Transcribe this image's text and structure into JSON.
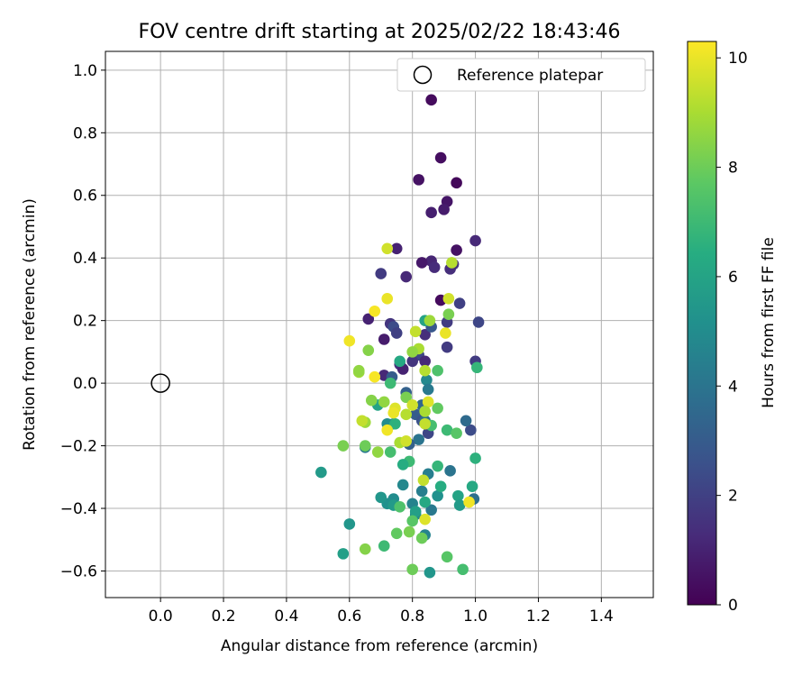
{
  "chart_data": {
    "type": "scatter",
    "title": "FOV centre drift starting at 2025/02/22 18:43:46",
    "xlabel": "Angular distance from reference (arcmin)",
    "ylabel": "Rotation from reference (arcmin)",
    "xlim": [
      -0.175,
      1.565
    ],
    "ylim": [
      -0.685,
      1.06
    ],
    "xticks": [
      "0.0",
      "0.2",
      "0.4",
      "0.6",
      "0.8",
      "1.0",
      "1.2",
      "1.4"
    ],
    "yticks": [
      "−0.6",
      "−0.4",
      "−0.2",
      "0.0",
      "0.2",
      "0.4",
      "0.6",
      "0.8",
      "1.0"
    ],
    "grid": true,
    "legend": {
      "placement": "top-right",
      "entries": [
        "Reference platepar"
      ]
    },
    "colorbar": {
      "label": "Hours from first FF file",
      "range": [
        0,
        10.3
      ],
      "ticks": [
        "0",
        "2",
        "4",
        "6",
        "8",
        "10"
      ],
      "colormap": "viridis"
    },
    "reference_point": {
      "name": "Reference platepar",
      "x": 0.0,
      "y": 0.0
    },
    "points": [
      {
        "x": 0.86,
        "y": 0.905,
        "h": 0.3
      },
      {
        "x": 0.89,
        "y": 0.72,
        "h": 0.4
      },
      {
        "x": 0.82,
        "y": 0.65,
        "h": 0.5
      },
      {
        "x": 0.94,
        "y": 0.64,
        "h": 0.2
      },
      {
        "x": 0.91,
        "y": 0.58,
        "h": 0.6
      },
      {
        "x": 0.9,
        "y": 0.555,
        "h": 0.8
      },
      {
        "x": 0.86,
        "y": 0.545,
        "h": 0.9
      },
      {
        "x": 1.0,
        "y": 0.455,
        "h": 1.2
      },
      {
        "x": 0.75,
        "y": 0.43,
        "h": 1.0
      },
      {
        "x": 0.94,
        "y": 0.425,
        "h": 0.5
      },
      {
        "x": 0.86,
        "y": 0.39,
        "h": 1.1
      },
      {
        "x": 0.83,
        "y": 0.385,
        "h": 0.7
      },
      {
        "x": 0.93,
        "y": 0.38,
        "h": 1.6
      },
      {
        "x": 0.87,
        "y": 0.37,
        "h": 1.3
      },
      {
        "x": 0.92,
        "y": 0.365,
        "h": 1.4
      },
      {
        "x": 0.7,
        "y": 0.35,
        "h": 1.8
      },
      {
        "x": 0.78,
        "y": 0.34,
        "h": 1.2
      },
      {
        "x": 0.89,
        "y": 0.265,
        "h": 0.3
      },
      {
        "x": 0.95,
        "y": 0.255,
        "h": 2.0
      },
      {
        "x": 0.66,
        "y": 0.205,
        "h": 1.0
      },
      {
        "x": 1.01,
        "y": 0.195,
        "h": 2.2
      },
      {
        "x": 0.91,
        "y": 0.195,
        "h": 1.8
      },
      {
        "x": 0.73,
        "y": 0.19,
        "h": 1.6
      },
      {
        "x": 0.74,
        "y": 0.18,
        "h": 2.4
      },
      {
        "x": 0.75,
        "y": 0.16,
        "h": 2.0
      },
      {
        "x": 0.84,
        "y": 0.155,
        "h": 1.4
      },
      {
        "x": 0.71,
        "y": 0.14,
        "h": 0.8
      },
      {
        "x": 0.86,
        "y": 0.18,
        "h": 2.8
      },
      {
        "x": 0.91,
        "y": 0.115,
        "h": 1.8
      },
      {
        "x": 0.82,
        "y": 0.09,
        "h": 2.2
      },
      {
        "x": 0.8,
        "y": 0.07,
        "h": 1.6
      },
      {
        "x": 0.84,
        "y": 0.07,
        "h": 1.2
      },
      {
        "x": 0.76,
        "y": 0.06,
        "h": 1.4
      },
      {
        "x": 0.77,
        "y": 0.045,
        "h": 1.0
      },
      {
        "x": 1.0,
        "y": 0.07,
        "h": 1.8
      },
      {
        "x": 0.71,
        "y": 0.025,
        "h": 1.2
      },
      {
        "x": 0.735,
        "y": 0.02,
        "h": 3.0
      },
      {
        "x": 0.845,
        "y": 0.01,
        "h": 4.8
      },
      {
        "x": 0.78,
        "y": -0.03,
        "h": 3.2
      },
      {
        "x": 0.85,
        "y": -0.02,
        "h": 4.2
      },
      {
        "x": 0.83,
        "y": -0.07,
        "h": 3.4
      },
      {
        "x": 0.81,
        "y": -0.1,
        "h": 3.0
      },
      {
        "x": 0.985,
        "y": -0.15,
        "h": 2.4
      },
      {
        "x": 0.97,
        "y": -0.12,
        "h": 3.6
      },
      {
        "x": 0.83,
        "y": -0.12,
        "h": 2.6
      },
      {
        "x": 0.85,
        "y": -0.16,
        "h": 2.2
      },
      {
        "x": 0.82,
        "y": -0.18,
        "h": 4.0
      },
      {
        "x": 0.79,
        "y": -0.195,
        "h": 3.2
      },
      {
        "x": 0.84,
        "y": -0.12,
        "h": 3.8
      },
      {
        "x": 0.74,
        "y": -0.13,
        "h": 4.6
      },
      {
        "x": 0.72,
        "y": -0.13,
        "h": 5.0
      },
      {
        "x": 0.65,
        "y": -0.205,
        "h": 4.2
      },
      {
        "x": 0.85,
        "y": -0.29,
        "h": 4.4
      },
      {
        "x": 0.92,
        "y": -0.28,
        "h": 4.0
      },
      {
        "x": 0.83,
        "y": -0.345,
        "h": 4.4
      },
      {
        "x": 0.77,
        "y": -0.325,
        "h": 4.8
      },
      {
        "x": 0.88,
        "y": -0.36,
        "h": 5.2
      },
      {
        "x": 0.995,
        "y": -0.37,
        "h": 3.8
      },
      {
        "x": 0.8,
        "y": -0.385,
        "h": 4.6
      },
      {
        "x": 0.86,
        "y": -0.405,
        "h": 4.2
      },
      {
        "x": 0.74,
        "y": -0.37,
        "h": 5.0
      },
      {
        "x": 0.72,
        "y": -0.385,
        "h": 5.2
      },
      {
        "x": 0.81,
        "y": -0.42,
        "h": 4.8
      },
      {
        "x": 0.84,
        "y": -0.485,
        "h": 4.6
      },
      {
        "x": 0.6,
        "y": -0.45,
        "h": 5.4
      },
      {
        "x": 0.51,
        "y": -0.285,
        "h": 5.6
      },
      {
        "x": 0.58,
        "y": -0.545,
        "h": 5.8
      },
      {
        "x": 0.855,
        "y": -0.605,
        "h": 5.4
      },
      {
        "x": 0.7,
        "y": -0.365,
        "h": 5.4
      },
      {
        "x": 0.74,
        "y": -0.39,
        "h": 5.6
      },
      {
        "x": 0.84,
        "y": -0.38,
        "h": 6.2
      },
      {
        "x": 0.81,
        "y": -0.41,
        "h": 5.8
      },
      {
        "x": 0.945,
        "y": -0.36,
        "h": 6.0
      },
      {
        "x": 0.95,
        "y": -0.39,
        "h": 5.6
      },
      {
        "x": 0.99,
        "y": -0.33,
        "h": 6.2
      },
      {
        "x": 1.0,
        "y": -0.24,
        "h": 6.6
      },
      {
        "x": 0.89,
        "y": -0.33,
        "h": 6.4
      },
      {
        "x": 0.88,
        "y": -0.265,
        "h": 6.8
      },
      {
        "x": 0.79,
        "y": -0.25,
        "h": 7.0
      },
      {
        "x": 0.77,
        "y": -0.26,
        "h": 6.4
      },
      {
        "x": 0.73,
        "y": -0.22,
        "h": 7.2
      },
      {
        "x": 0.745,
        "y": -0.13,
        "h": 6.6
      },
      {
        "x": 0.69,
        "y": -0.07,
        "h": 6.0
      },
      {
        "x": 0.73,
        "y": 0.0,
        "h": 7.0
      },
      {
        "x": 0.76,
        "y": 0.07,
        "h": 6.2
      },
      {
        "x": 0.84,
        "y": 0.2,
        "h": 6.0
      },
      {
        "x": 0.88,
        "y": 0.04,
        "h": 7.4
      },
      {
        "x": 1.005,
        "y": 0.05,
        "h": 6.8
      },
      {
        "x": 0.91,
        "y": -0.15,
        "h": 7.0
      },
      {
        "x": 0.94,
        "y": -0.16,
        "h": 7.6
      },
      {
        "x": 0.88,
        "y": -0.08,
        "h": 7.8
      },
      {
        "x": 0.86,
        "y": -0.135,
        "h": 7.2
      },
      {
        "x": 0.76,
        "y": -0.395,
        "h": 7.4
      },
      {
        "x": 0.8,
        "y": -0.44,
        "h": 7.6
      },
      {
        "x": 0.75,
        "y": -0.48,
        "h": 7.8
      },
      {
        "x": 0.71,
        "y": -0.52,
        "h": 7.0
      },
      {
        "x": 0.83,
        "y": -0.495,
        "h": 8.0
      },
      {
        "x": 0.79,
        "y": -0.475,
        "h": 8.2
      },
      {
        "x": 0.91,
        "y": -0.555,
        "h": 7.6
      },
      {
        "x": 0.96,
        "y": -0.595,
        "h": 7.2
      },
      {
        "x": 0.8,
        "y": -0.595,
        "h": 8.0
      },
      {
        "x": 0.65,
        "y": -0.53,
        "h": 8.4
      },
      {
        "x": 0.58,
        "y": -0.2,
        "h": 8.2
      },
      {
        "x": 0.65,
        "y": -0.2,
        "h": 8.0
      },
      {
        "x": 0.69,
        "y": -0.22,
        "h": 8.6
      },
      {
        "x": 0.76,
        "y": -0.19,
        "h": 9.0
      },
      {
        "x": 0.65,
        "y": -0.125,
        "h": 8.8
      },
      {
        "x": 0.64,
        "y": -0.12,
        "h": 9.4
      },
      {
        "x": 0.67,
        "y": -0.055,
        "h": 8.4
      },
      {
        "x": 0.71,
        "y": -0.06,
        "h": 8.6
      },
      {
        "x": 0.78,
        "y": -0.045,
        "h": 8.2
      },
      {
        "x": 0.78,
        "y": -0.1,
        "h": 9.2
      },
      {
        "x": 0.745,
        "y": -0.08,
        "h": 9.8
      },
      {
        "x": 0.8,
        "y": -0.07,
        "h": 9.6
      },
      {
        "x": 0.74,
        "y": -0.095,
        "h": 10.0
      },
      {
        "x": 0.85,
        "y": -0.06,
        "h": 9.8
      },
      {
        "x": 0.84,
        "y": -0.09,
        "h": 9.0
      },
      {
        "x": 0.84,
        "y": -0.13,
        "h": 9.4
      },
      {
        "x": 0.72,
        "y": -0.15,
        "h": 10.1
      },
      {
        "x": 0.63,
        "y": 0.035,
        "h": 8.8
      },
      {
        "x": 0.66,
        "y": 0.105,
        "h": 8.4
      },
      {
        "x": 0.63,
        "y": 0.04,
        "h": 8.6
      },
      {
        "x": 0.84,
        "y": 0.04,
        "h": 9.2
      },
      {
        "x": 0.82,
        "y": 0.11,
        "h": 9.0
      },
      {
        "x": 0.8,
        "y": 0.1,
        "h": 8.6
      },
      {
        "x": 0.81,
        "y": 0.165,
        "h": 9.4
      },
      {
        "x": 0.855,
        "y": 0.2,
        "h": 8.8
      },
      {
        "x": 0.915,
        "y": 0.22,
        "h": 8.2
      },
      {
        "x": 0.915,
        "y": 0.27,
        "h": 9.6
      },
      {
        "x": 0.905,
        "y": 0.16,
        "h": 10.0
      },
      {
        "x": 0.6,
        "y": 0.135,
        "h": 10.1
      },
      {
        "x": 0.68,
        "y": 0.23,
        "h": 10.2
      },
      {
        "x": 0.72,
        "y": 0.27,
        "h": 10.0
      },
      {
        "x": 0.72,
        "y": 0.43,
        "h": 9.6
      },
      {
        "x": 0.925,
        "y": 0.385,
        "h": 9.2
      },
      {
        "x": 0.68,
        "y": 0.02,
        "h": 10.2
      },
      {
        "x": 0.835,
        "y": -0.31,
        "h": 9.4
      },
      {
        "x": 0.84,
        "y": -0.435,
        "h": 9.8
      },
      {
        "x": 0.98,
        "y": -0.38,
        "h": 10.1
      },
      {
        "x": 0.78,
        "y": -0.185,
        "h": 9.6
      }
    ]
  }
}
